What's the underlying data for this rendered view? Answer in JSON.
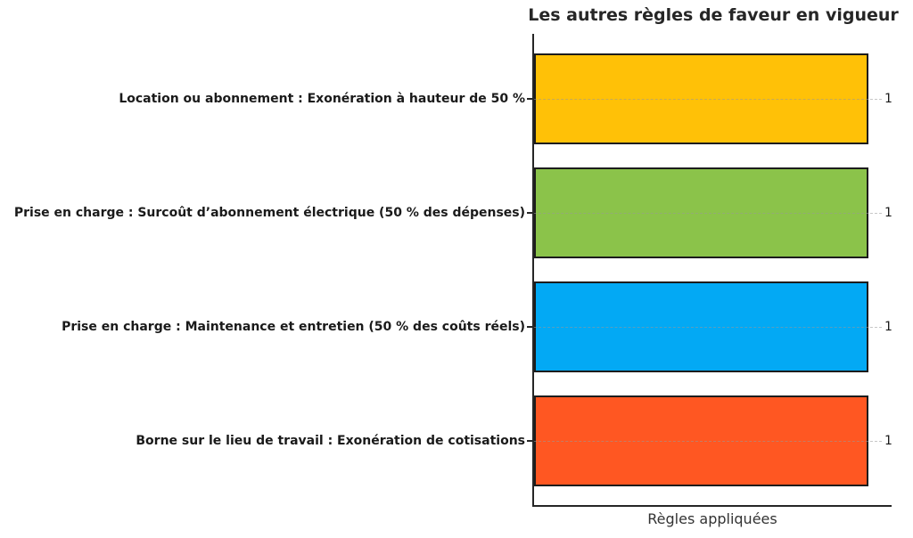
{
  "chart_data": {
    "type": "bar",
    "orientation": "horizontal",
    "title": "Les autres règles de faveur en vigueur",
    "xlabel": "Règles appliquées",
    "ylabel": "",
    "categories": [
      "Location ou abonnement : Exonération à hauteur de 50 %",
      "Prise en charge : Surcoût d’abonnement électrique (50 % des dépenses)",
      "Prise en charge : Maintenance et entretien (50 % des coûts réels)",
      "Borne sur le lieu de travail : Exonération de cotisations"
    ],
    "values": [
      1,
      1,
      1,
      1
    ],
    "value_labels": [
      "1",
      "1",
      "1",
      "1"
    ],
    "bar_colors": [
      "#FFC107",
      "#8BC34A",
      "#03A9F4",
      "#FF5722"
    ],
    "xlim": [
      0,
      1.07
    ],
    "grid": "dashed horizontal gridlines at each bar center",
    "legend": "none",
    "colors": {
      "axis": "#262626",
      "grid": "#999999",
      "text": "#1a1a1a",
      "background": "#ffffff"
    }
  }
}
